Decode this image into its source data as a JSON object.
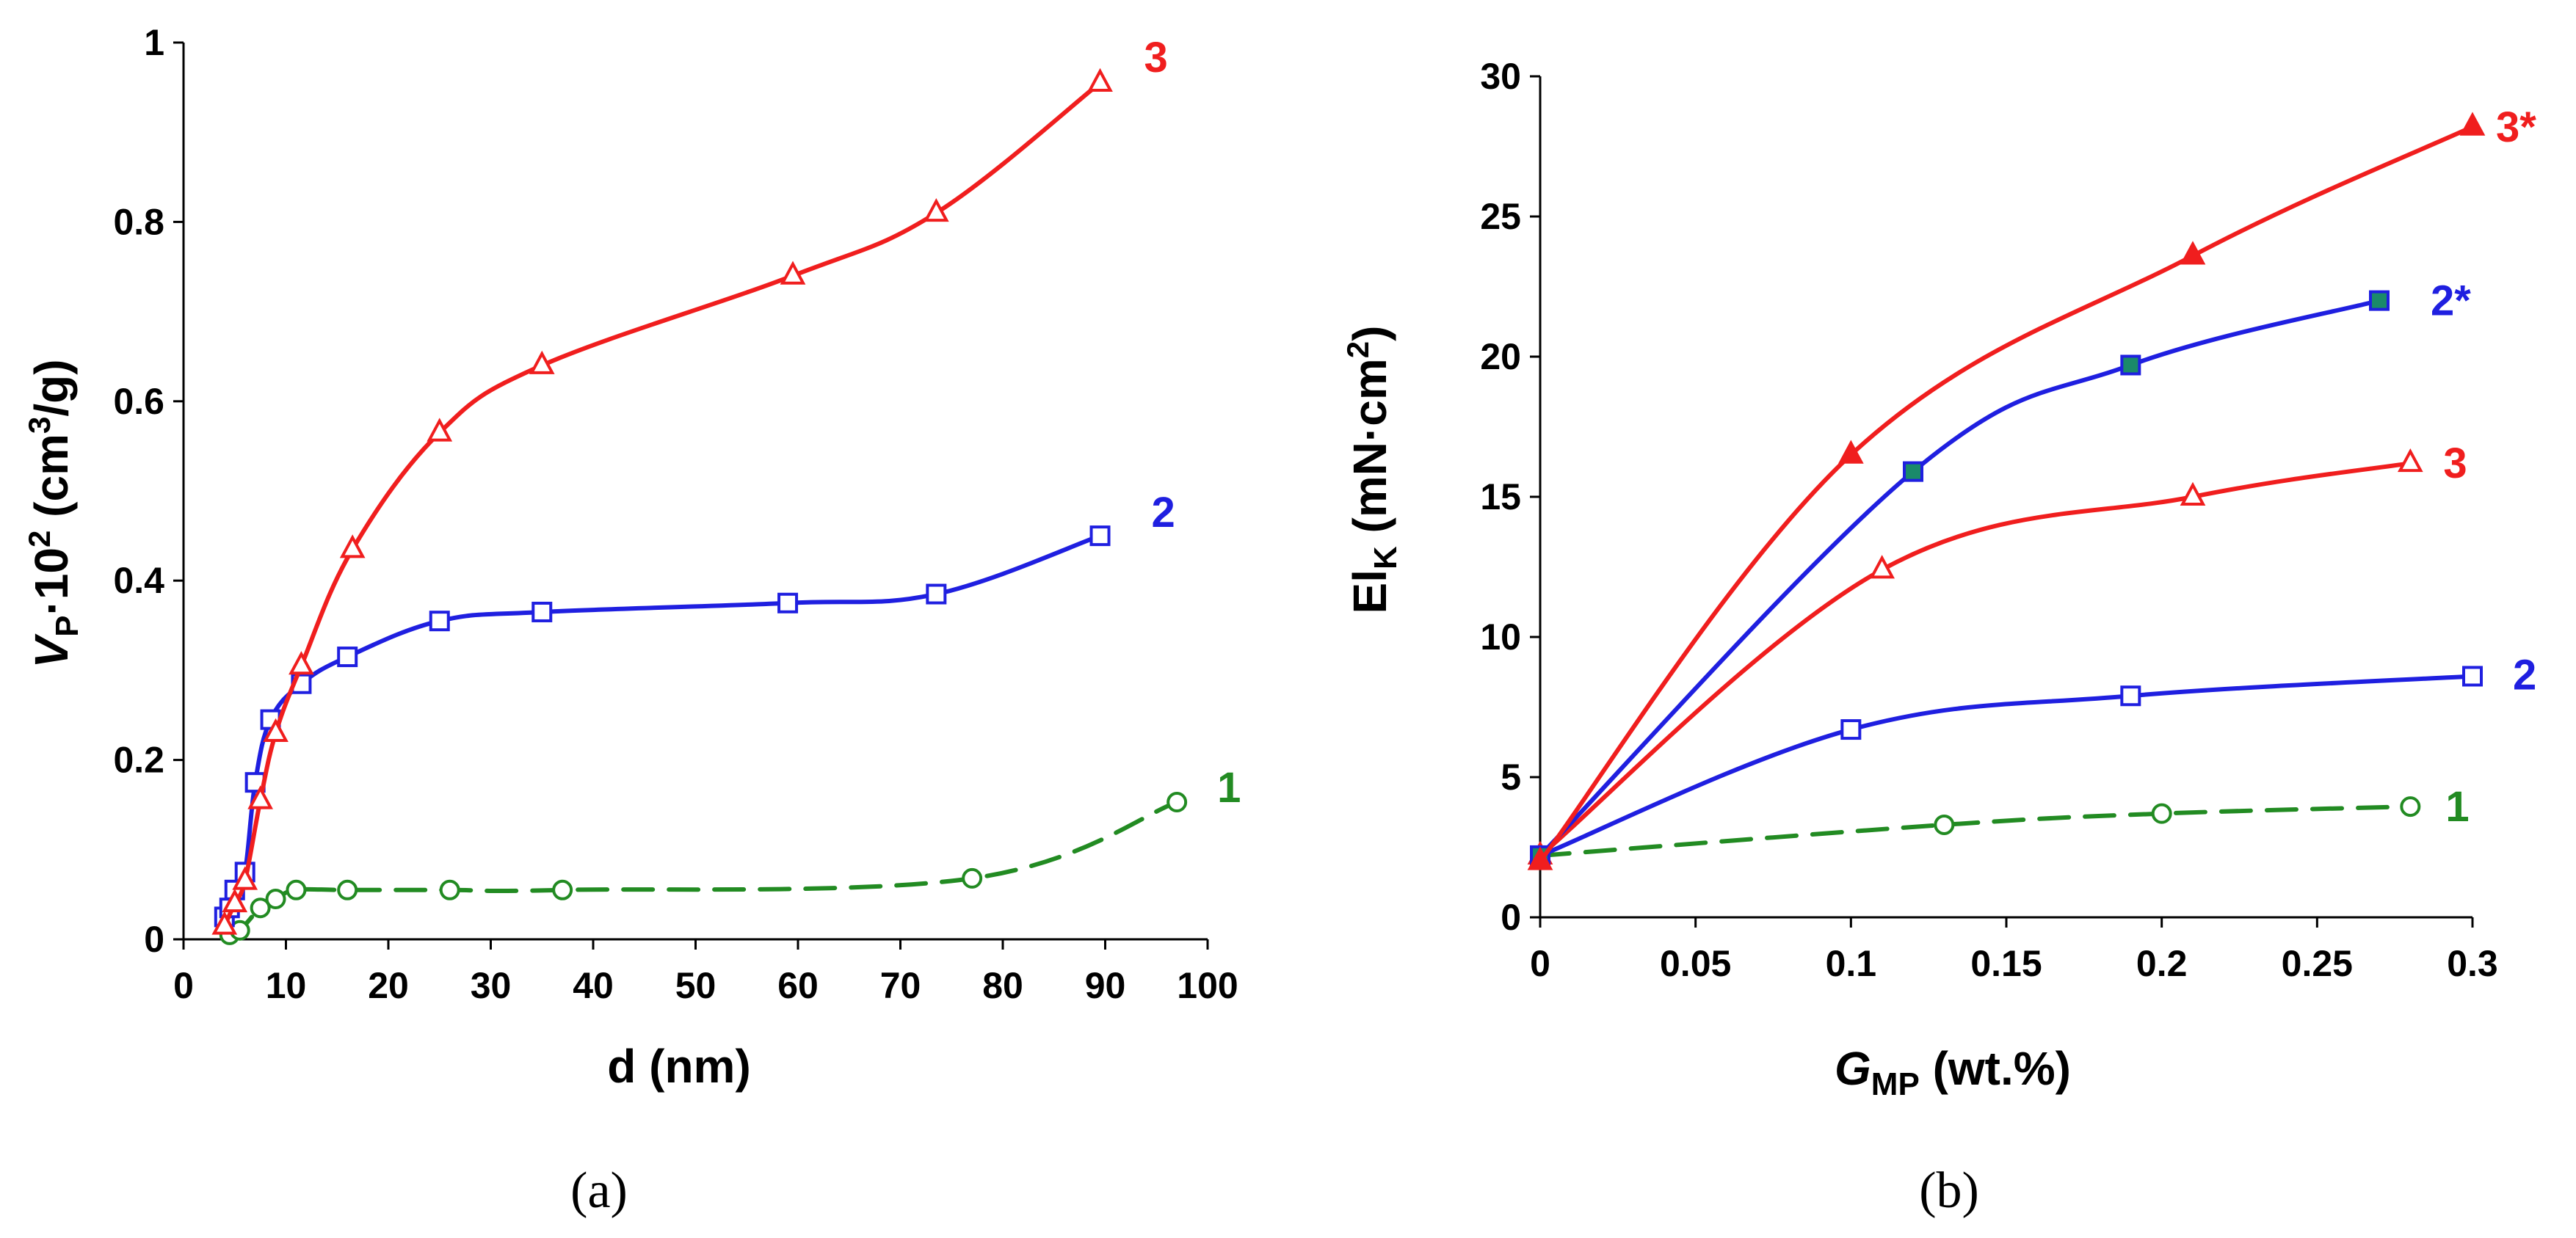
{
  "chart_data": [
    {
      "type": "line",
      "panel_label": "a",
      "xlabel": "d (nm)",
      "ylabel": {
        "base": "V",
        "sub": "P",
        "mid": "·10",
        "sup": "2",
        "unit_pre": " (cm",
        "unit_sup": "3",
        "unit_post": "/g)"
      },
      "xlim": [
        0,
        100
      ],
      "ylim": [
        0,
        1
      ],
      "xticks": [
        0,
        10,
        20,
        30,
        40,
        50,
        60,
        70,
        80,
        90,
        100
      ],
      "yticks": [
        0,
        0.2,
        0.4,
        0.6,
        0.8,
        1
      ],
      "ytick_labels": [
        "0",
        "0.2",
        "0.4",
        "0.6",
        "0.8",
        "1"
      ],
      "series": [
        {
          "name": "1",
          "color": "#228B22",
          "dashed": true,
          "marker": "circle-open",
          "x": [
            4.5,
            5.5,
            7.5,
            9,
            11,
            16,
            26,
            37,
            77,
            97
          ],
          "y": [
            0.005,
            0.01,
            0.035,
            0.045,
            0.055,
            0.055,
            0.055,
            0.055,
            0.068,
            0.153
          ]
        },
        {
          "name": "2",
          "color": "#1F1FE0",
          "dashed": false,
          "marker": "square-open",
          "x": [
            4,
            4.5,
            5,
            6,
            7,
            8.5,
            11.5,
            16,
            25,
            35,
            59,
            73.5,
            89.5
          ],
          "y": [
            0.025,
            0.035,
            0.055,
            0.075,
            0.175,
            0.245,
            0.285,
            0.315,
            0.355,
            0.365,
            0.375,
            0.385,
            0.45
          ]
        },
        {
          "name": "3",
          "color": "#F01E1E",
          "dashed": false,
          "marker": "triangle-open",
          "x": [
            4,
            5,
            6,
            7.5,
            9,
            11.5,
            16.5,
            25,
            35,
            59.5,
            73.5,
            89.5
          ],
          "y": [
            0.015,
            0.04,
            0.065,
            0.155,
            0.23,
            0.305,
            0.435,
            0.565,
            0.64,
            0.74,
            0.81,
            0.955
          ]
        }
      ]
    },
    {
      "type": "line",
      "panel_label": "b",
      "xlabel": {
        "base": "G",
        "sub": "MP",
        "post": " (wt.%)"
      },
      "ylabel": {
        "base": "El",
        "sub": "K",
        "unit_pre": " (mN·cm",
        "unit_sup": "2",
        "unit_post": ")"
      },
      "xlim": [
        0,
        0.3
      ],
      "ylim": [
        0,
        30
      ],
      "xticks": [
        0,
        0.05,
        0.1,
        0.15,
        0.2,
        0.25,
        0.3
      ],
      "xtick_labels": [
        "0",
        "0.05",
        "0.1",
        "0.15",
        "0.2",
        "0.25",
        "0.3"
      ],
      "yticks": [
        0,
        5,
        10,
        15,
        20,
        25,
        30
      ],
      "series": [
        {
          "name": "1",
          "color": "#228B22",
          "dashed": true,
          "marker": "circle-open",
          "x": [
            0,
            0.13,
            0.2,
            0.28
          ],
          "y": [
            2.2,
            3.3,
            3.7,
            3.95
          ]
        },
        {
          "name": "2",
          "color": "#1F1FE0",
          "dashed": false,
          "marker": "square-open",
          "x": [
            0,
            0.1,
            0.19,
            0.3
          ],
          "y": [
            2.2,
            6.7,
            7.9,
            8.6
          ]
        },
        {
          "name": "3",
          "color": "#F01E1E",
          "dashed": false,
          "marker": "triangle-open",
          "x": [
            0,
            0.11,
            0.21,
            0.28
          ],
          "y": [
            2.2,
            12.4,
            15.0,
            16.2
          ]
        },
        {
          "name": "2*",
          "color": "#1F1FE0",
          "dashed": false,
          "marker": "square-filled",
          "x": [
            0,
            0.12,
            0.19,
            0.27
          ],
          "y": [
            2.2,
            15.9,
            19.7,
            22.0
          ]
        },
        {
          "name": "3*",
          "color": "#F01E1E",
          "dashed": false,
          "marker": "triangle-filled",
          "x": [
            0,
            0.1,
            0.21,
            0.3
          ],
          "y": [
            2.0,
            16.5,
            23.6,
            28.2
          ]
        }
      ]
    }
  ],
  "captions": {
    "a": "(a)",
    "b": "(b)"
  }
}
